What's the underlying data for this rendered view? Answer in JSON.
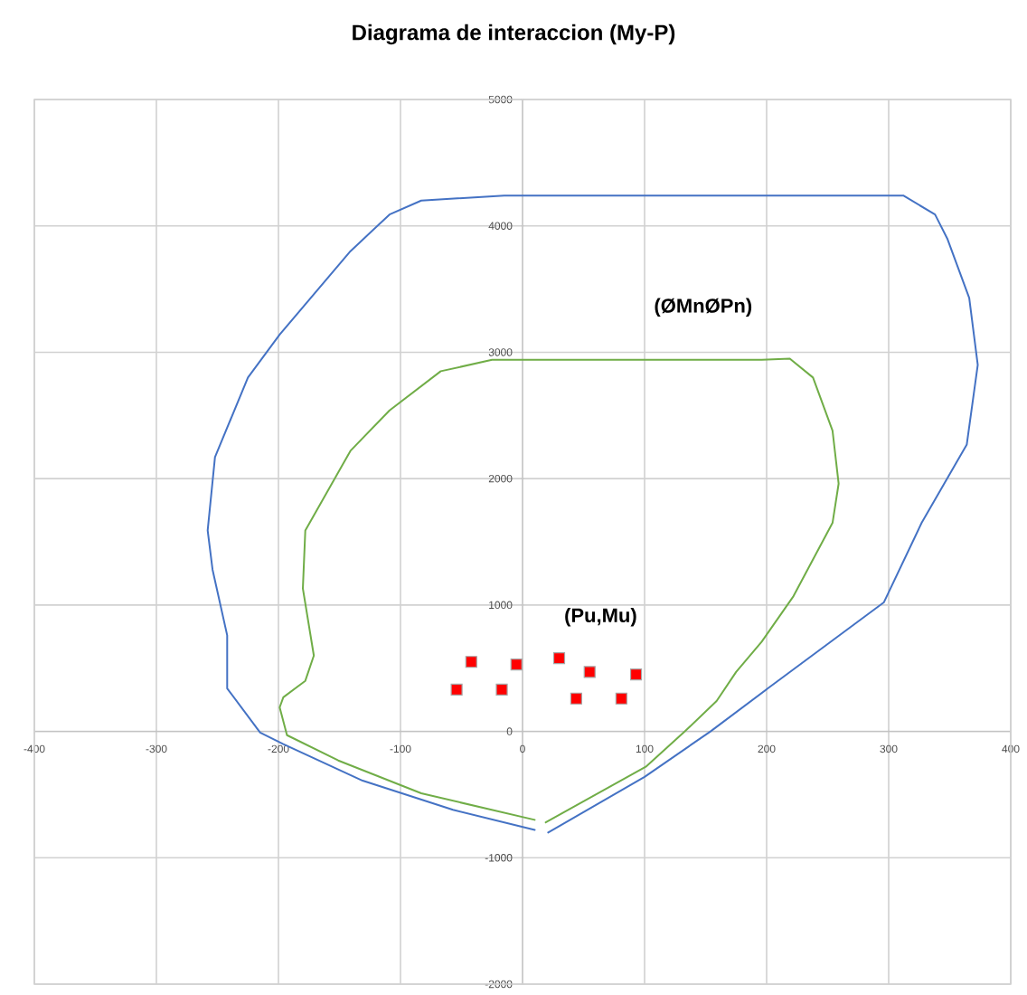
{
  "chart_data": {
    "type": "line",
    "title": "Diagrama de interaccion (My-P)",
    "xlim": [
      -400,
      400
    ],
    "ylim": [
      -2000,
      5000
    ],
    "xticks": [
      -400,
      -300,
      -200,
      -100,
      0,
      100,
      200,
      300,
      400
    ],
    "yticks": [
      -2000,
      -1000,
      0,
      1000,
      2000,
      3000,
      4000,
      5000
    ],
    "grid": true,
    "legend": false,
    "series": [
      {
        "color": "#4472c4",
        "marker": "none",
        "x": [
          21,
          100,
          154,
          201,
          296,
          327,
          364,
          373,
          366,
          348,
          338,
          312,
          48,
          -15,
          -83,
          -109,
          -141,
          -199,
          -225,
          -252,
          -258,
          -254,
          -242,
          -242,
          -215,
          -196,
          -131,
          -57,
          10
        ],
        "values": [
          -800,
          -360,
          0,
          340,
          1020,
          1650,
          2270,
          2900,
          3430,
          3900,
          4090,
          4240,
          4240,
          4240,
          4200,
          4090,
          3800,
          3140,
          2800,
          2170,
          1590,
          1280,
          760,
          340,
          -10,
          -100,
          -390,
          -620,
          -780
        ]
      },
      {
        "name": "(ØMnØPn)",
        "color": "#70ad47",
        "marker": "none",
        "x": [
          19,
          101,
          133,
          159,
          175,
          196,
          222,
          254,
          259,
          254,
          238,
          219,
          196,
          22,
          -25,
          -67,
          -109,
          -141,
          -178,
          -180,
          -171,
          -178,
          -196,
          -199,
          -193,
          -151,
          -83,
          10
        ],
        "values": [
          -720,
          -280,
          0,
          240,
          470,
          710,
          1070,
          1650,
          1960,
          2380,
          2800,
          2950,
          2940,
          2940,
          2940,
          2850,
          2540,
          2220,
          1590,
          1130,
          600,
          400,
          270,
          190,
          -30,
          -230,
          -490,
          -700
        ]
      },
      {
        "type": "scatter",
        "name": "(Pu,Mu)",
        "color": "#ff0000",
        "marker": "square",
        "x": [
          -42,
          -5,
          30,
          55,
          93,
          -54,
          -17,
          44,
          81
        ],
        "values": [
          550,
          530,
          580,
          470,
          450,
          330,
          330,
          260,
          260
        ]
      }
    ]
  }
}
